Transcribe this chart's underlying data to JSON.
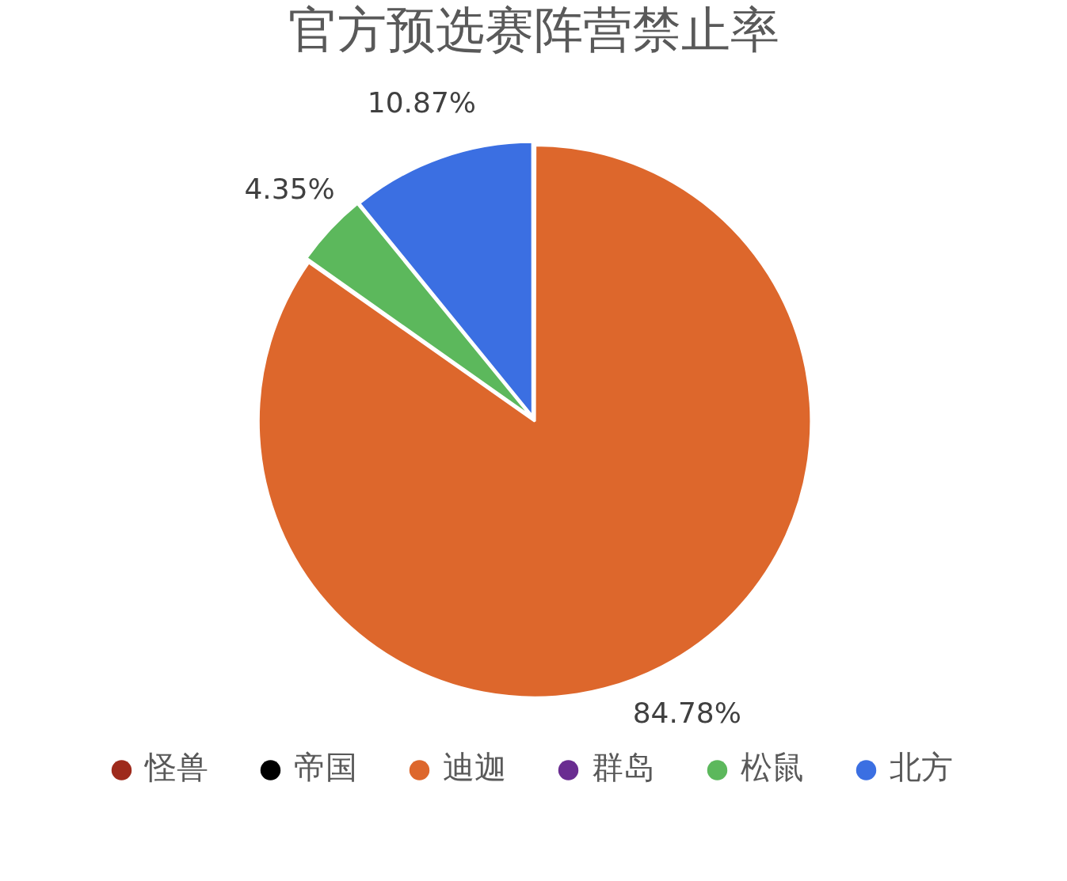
{
  "chart_data": {
    "type": "pie",
    "title": "官方预选赛阵营禁止率",
    "categories": [
      "怪兽",
      "帝国",
      "迪迦",
      "群岛",
      "松鼠",
      "北方"
    ],
    "values": [
      0,
      0,
      84.78,
      0,
      4.35,
      10.87
    ],
    "colors": [
      "#9e2a1c",
      "#000000",
      "#dd672c",
      "#6a2d91",
      "#5cb85c",
      "#3b6fe2"
    ],
    "value_labels": [
      null,
      null,
      "84.78%",
      null,
      "4.35%",
      "10.87%"
    ],
    "legend": "bottom"
  }
}
